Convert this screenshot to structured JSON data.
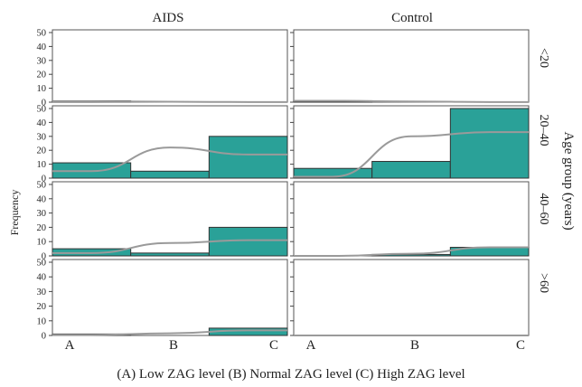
{
  "chart_data": {
    "type": "bar",
    "subtype": "faceted histogram with fitted normal curves",
    "columns": [
      "AIDS",
      "Control"
    ],
    "row_labels": [
      "<20",
      "20–40",
      "40–60",
      ">60"
    ],
    "row_axis_label": "Age group (years)",
    "ylabel": "Frequency",
    "caption": "(A) Low ZAG level (B) Normal ZAG level (C) High ZAG level",
    "categories": [
      "A",
      "B",
      "C"
    ],
    "ylim": [
      0,
      50
    ],
    "yticks": [
      0,
      10,
      20,
      30,
      40,
      50
    ],
    "bar_color": "#2aa198",
    "curve_color": "#9a9a9a",
    "panels": [
      {
        "column": "AIDS",
        "row": "<20",
        "values": [
          1,
          0,
          0
        ],
        "curve": [
          0.6,
          0.3,
          0.1
        ]
      },
      {
        "column": "Control",
        "row": "<20",
        "values": [
          1,
          0,
          0
        ],
        "curve": [
          1,
          0.5,
          0.1
        ]
      },
      {
        "column": "AIDS",
        "row": "20–40",
        "values": [
          11,
          5,
          30
        ],
        "curve": [
          5,
          22,
          17
        ]
      },
      {
        "column": "Control",
        "row": "20–40",
        "values": [
          7,
          12,
          50
        ],
        "curve": [
          1,
          30,
          33
        ]
      },
      {
        "column": "AIDS",
        "row": "40–60",
        "values": [
          5,
          2,
          20
        ],
        "curve": [
          2,
          9,
          11
        ]
      },
      {
        "column": "Control",
        "row": "40–60",
        "values": [
          0,
          1,
          6
        ],
        "curve": [
          0,
          1.5,
          6
        ]
      },
      {
        "column": "AIDS",
        "row": ">60",
        "values": [
          1,
          0,
          5
        ],
        "curve": [
          0.4,
          1.5,
          3.5
        ]
      },
      {
        "column": "Control",
        "row": ">60",
        "values": [
          0,
          0,
          0
        ],
        "curve": [
          0,
          0,
          0
        ]
      }
    ]
  }
}
